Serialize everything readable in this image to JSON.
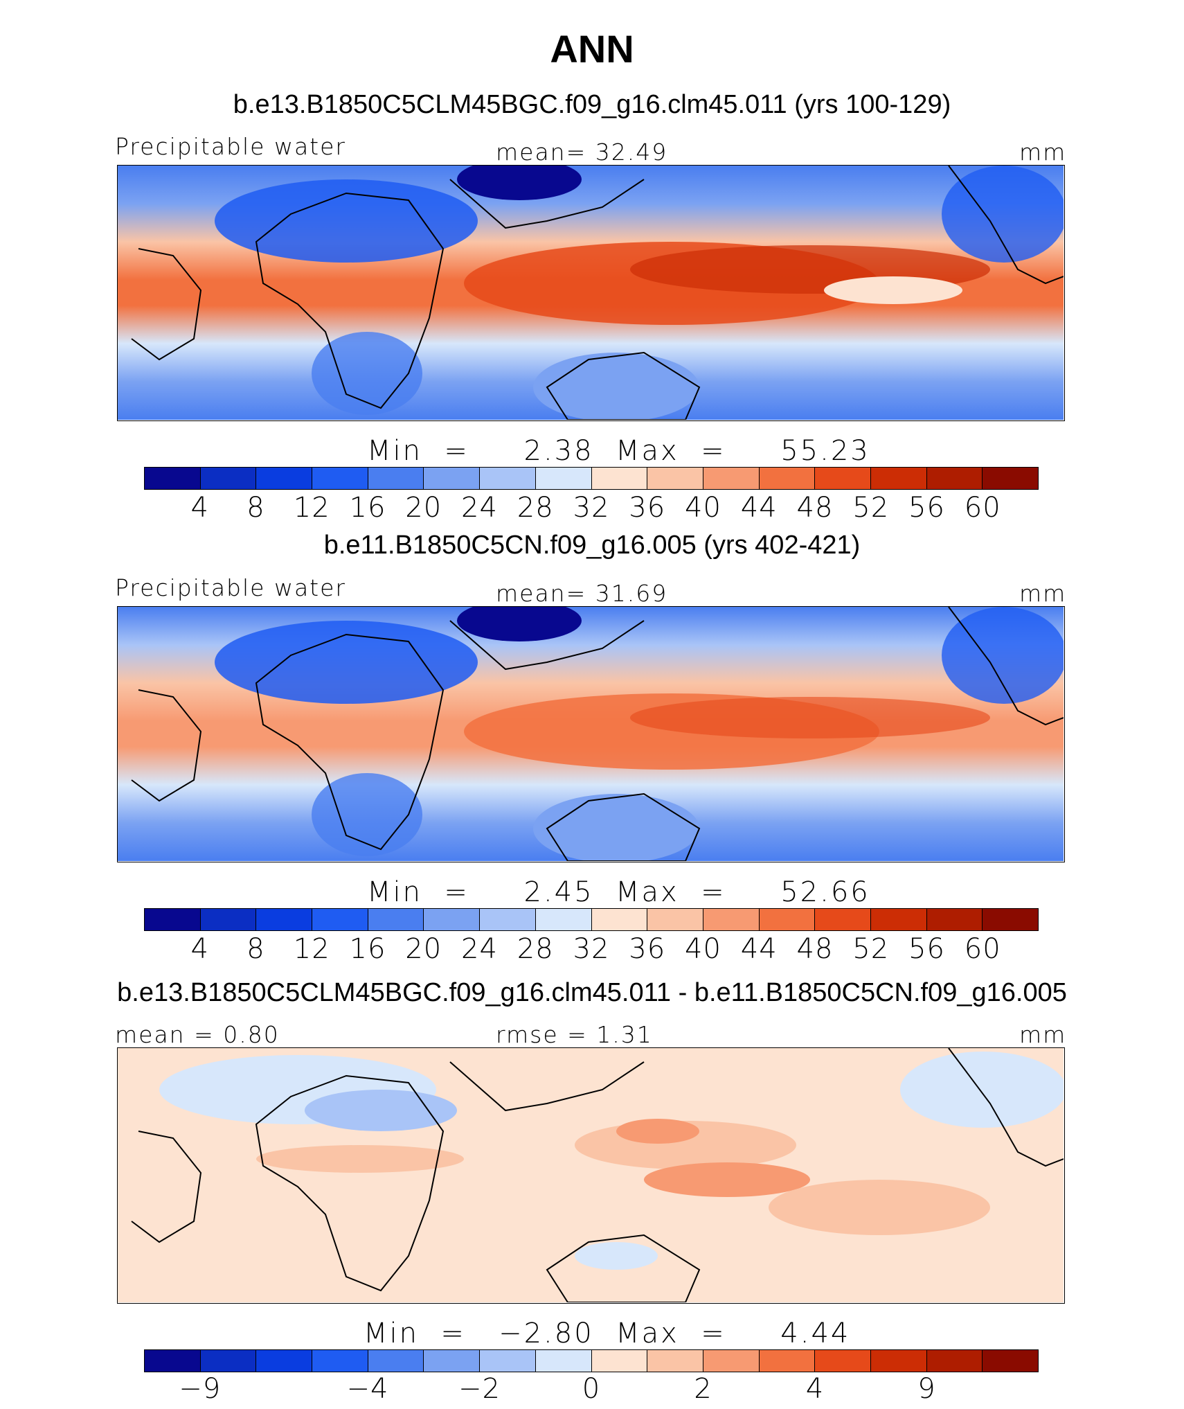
{
  "figure": {
    "title": "ANN"
  },
  "colorscales": {
    "abs": [
      "#08088f",
      "#0b2ec3",
      "#0a3de0",
      "#1f5cf2",
      "#4a7ef0",
      "#7ba2f2",
      "#a9c4f7",
      "#d7e7fb",
      "#fde3d1",
      "#fac4a6",
      "#f79a72",
      "#f2713f",
      "#e64a1a",
      "#cc2d05",
      "#ae1d00",
      "#8a0b00"
    ],
    "diff": [
      "#08088f",
      "#0b2ec3",
      "#0a3de0",
      "#1f5cf2",
      "#4a7ef0",
      "#7ba2f2",
      "#a9c4f7",
      "#d7e7fb",
      "#fde3d1",
      "#fac4a6",
      "#f79a72",
      "#f2713f",
      "#e64a1a",
      "#cc2d05",
      "#ae1d00",
      "#8a0b00"
    ]
  },
  "panels": [
    {
      "run_title": "b.e13.B1850C5CLM45BGC.f09_g16.clm45.011 (yrs 100-129)",
      "left_label": "Precipitable water",
      "center_label": "mean=   32.49",
      "units": "mm",
      "min_label": "Min  =     2.38  Max  =     55.23",
      "min": 2.38,
      "max": 55.23,
      "mean": 32.49,
      "ticks": [
        "4",
        "8",
        "12",
        "16",
        "20",
        "24",
        "28",
        "32",
        "36",
        "40",
        "44",
        "48",
        "52",
        "56",
        "60"
      ]
    },
    {
      "run_title": "b.e11.B1850C5CN.f09_g16.005 (yrs 402-421)",
      "left_label": "Precipitable water",
      "center_label": "mean=   31.69",
      "units": "mm",
      "min_label": "Min  =     2.45  Max  =     52.66",
      "min": 2.45,
      "max": 52.66,
      "mean": 31.69,
      "ticks": [
        "4",
        "8",
        "12",
        "16",
        "20",
        "24",
        "28",
        "32",
        "36",
        "40",
        "44",
        "48",
        "52",
        "56",
        "60"
      ]
    },
    {
      "run_title": "b.e13.B1850C5CLM45BGC.f09_g16.clm45.011 - b.e11.B1850C5CN.f09_g16.005",
      "left_label": "mean =    0.80",
      "center_label": "rmse =    1.31",
      "units": "mm",
      "min_label": "Min  =   −2.80  Max  =     4.44",
      "min": -2.8,
      "max": 4.44,
      "mean": 0.8,
      "rmse": 1.31,
      "ticks": [
        "−9",
        "−4",
        "−2",
        "0",
        "2",
        "4",
        "9"
      ]
    }
  ]
}
